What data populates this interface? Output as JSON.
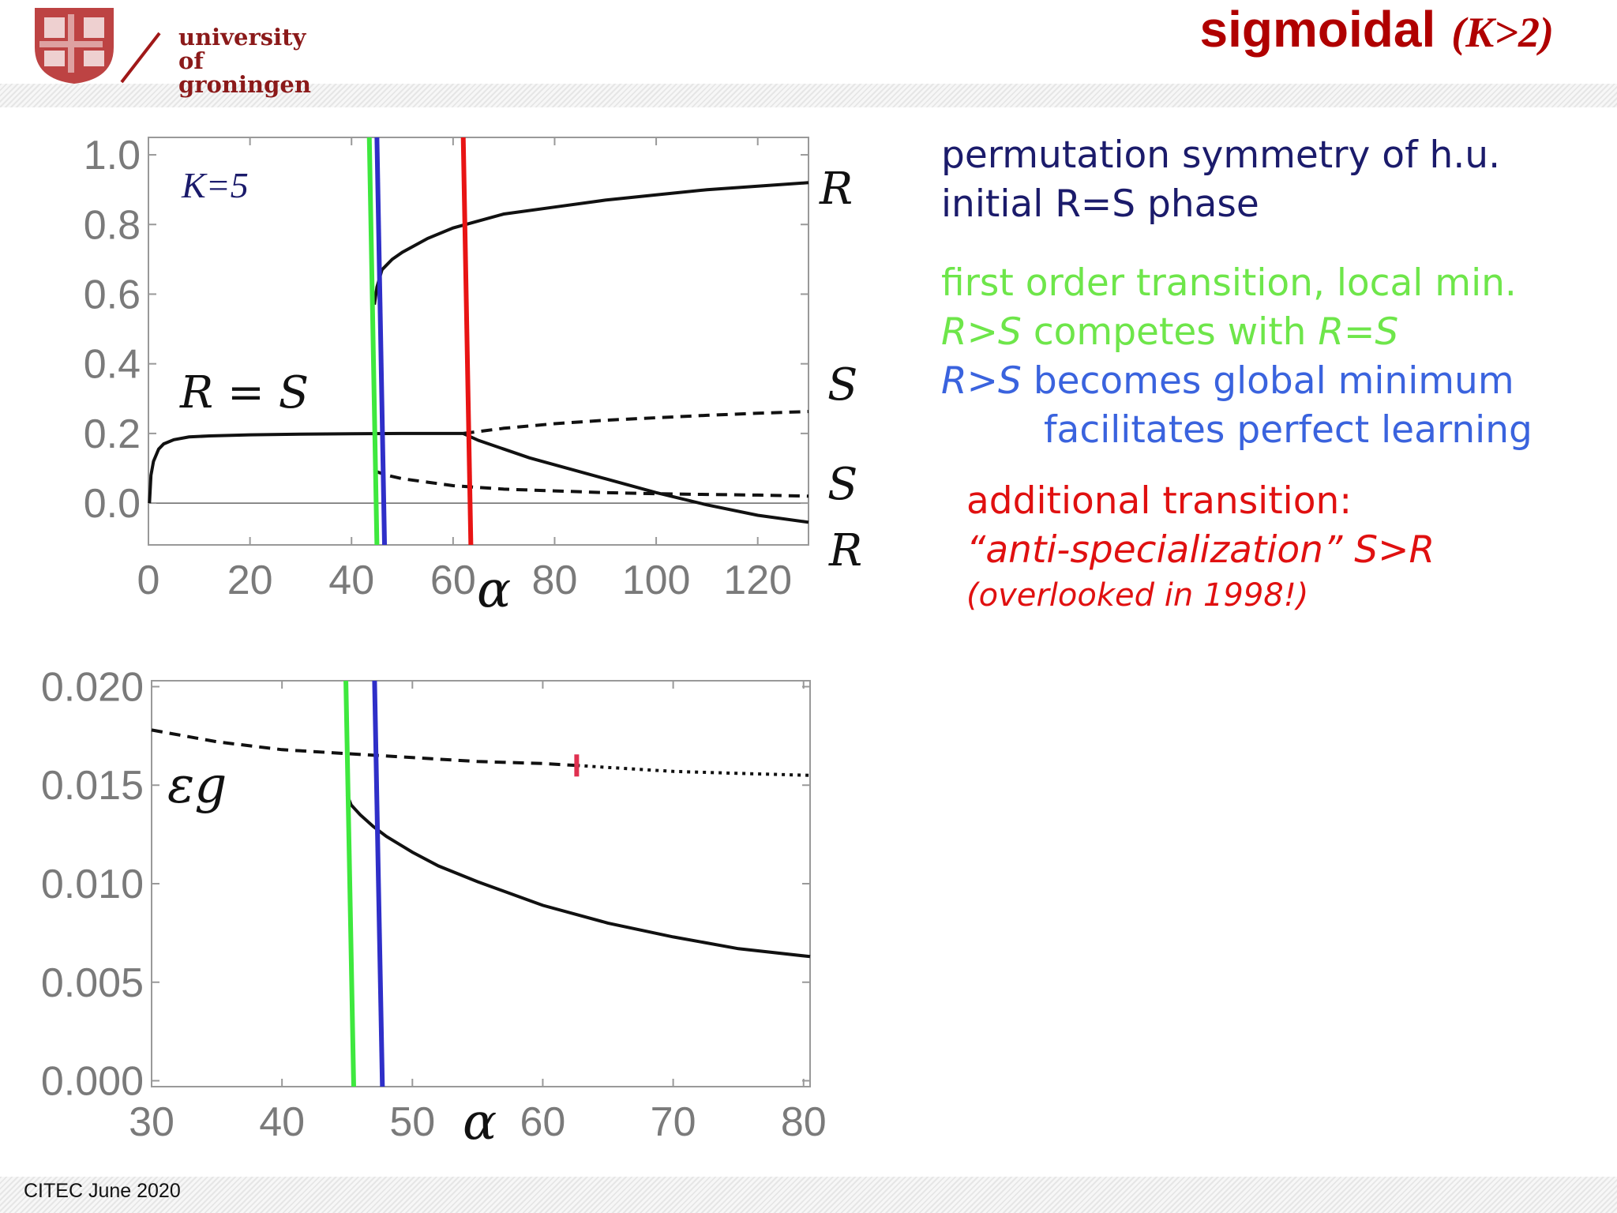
{
  "header": {
    "logo_line1": "university of",
    "logo_line2": "groningen",
    "title_main": "sigmoidal",
    "title_sub": "(K>2)"
  },
  "footer": {
    "label": "CITEC June 2020"
  },
  "colors": {
    "green": "#3ee83e",
    "blue": "#2f2fc8",
    "red": "#e81414",
    "title": "#b00000"
  },
  "text": {
    "line1": "permutation symmetry of h.u.",
    "line2": "initial R=S phase",
    "green_line1": "first order transition, local min.",
    "green_line2_a": "R>S",
    "green_line2_b": " competes with ",
    "green_line2_c": "R=S",
    "blue_line1_a": "R>S",
    "blue_line1_b": " becomes global minimum",
    "blue_line2": "facilitates perfect learning",
    "red_line1": "additional transition:",
    "red_line2_a": "“anti-specialization” ",
    "red_line2_b": "S>R",
    "red_line3": "(overlooked in 1998!)"
  },
  "chart_data": [
    {
      "type": "line",
      "xlabel": "α",
      "xlim": [
        0,
        130
      ],
      "ylim": [
        -0.12,
        1.05
      ],
      "xticks": [
        0,
        20,
        40,
        60,
        80,
        100,
        120
      ],
      "yticks": [
        "1.0",
        "0.8",
        "0.6",
        "0.4",
        "0.2",
        "0.0"
      ],
      "annotation": "K=5",
      "curve_labels": {
        "RS": "R = S",
        "R_top": "R",
        "S_upper": "S",
        "S_lower": "S",
        "R_bottom": "R"
      },
      "vertical_lines": [
        {
          "color": "green",
          "x_top": 43.5,
          "x_bottom": 45
        },
        {
          "color": "blue",
          "x_top": 45,
          "x_bottom": 46.5
        },
        {
          "color": "red",
          "x_top": 62,
          "x_bottom": 63.5
        }
      ],
      "series": [
        {
          "style": "solid",
          "x": [
            0.2,
            0.5,
            1,
            2,
            3,
            5,
            8,
            12,
            20,
            30,
            40,
            50,
            62
          ],
          "y": [
            0.0,
            0.08,
            0.12,
            0.155,
            0.17,
            0.182,
            0.19,
            0.193,
            0.196,
            0.198,
            0.199,
            0.2,
            0.2
          ]
        },
        {
          "style": "solid",
          "x": [
            44.5,
            45,
            46,
            48,
            50,
            55,
            60,
            65,
            70,
            80,
            90,
            100,
            110,
            120,
            130
          ],
          "y": [
            0.57,
            0.62,
            0.67,
            0.7,
            0.72,
            0.76,
            0.79,
            0.81,
            0.83,
            0.85,
            0.87,
            0.885,
            0.9,
            0.91,
            0.92
          ]
        },
        {
          "style": "solid",
          "x": [
            62,
            65,
            70,
            75,
            80,
            90,
            100,
            110,
            120,
            130
          ],
          "y": [
            0.2,
            0.18,
            0.155,
            0.13,
            0.11,
            0.07,
            0.03,
            -0.005,
            -0.035,
            -0.055
          ]
        },
        {
          "style": "dashed",
          "x": [
            62,
            70,
            80,
            90,
            100,
            110,
            120,
            130
          ],
          "y": [
            0.2,
            0.215,
            0.228,
            0.238,
            0.245,
            0.252,
            0.258,
            0.263
          ]
        },
        {
          "style": "dashed",
          "x": [
            44.5,
            45,
            47,
            50,
            55,
            60,
            70,
            80,
            90,
            100,
            110,
            120,
            130
          ],
          "y": [
            0.1,
            0.09,
            0.08,
            0.07,
            0.06,
            0.05,
            0.04,
            0.035,
            0.03,
            0.027,
            0.025,
            0.023,
            0.02
          ]
        }
      ]
    },
    {
      "type": "line",
      "xlabel": "α",
      "ylabel": "εg",
      "xlim": [
        30,
        80.5
      ],
      "ylim": [
        -0.0003,
        0.0203
      ],
      "xticks": [
        30,
        40,
        50,
        60,
        70,
        80
      ],
      "yticks": [
        "0.020",
        "0.015",
        "0.010",
        "0.005",
        "0.000"
      ],
      "vertical_lines": [
        {
          "color": "green",
          "x_top": 44.9,
          "x_bottom": 45.5
        },
        {
          "color": "blue",
          "x_top": 47.1,
          "x_bottom": 47.7
        }
      ],
      "red_marker": {
        "x": 62.6,
        "y": 0.016
      },
      "series": [
        {
          "style": "dashed",
          "x": [
            30,
            35,
            40,
            45,
            50,
            55,
            60,
            62.6
          ],
          "y": [
            0.0178,
            0.0172,
            0.0168,
            0.0166,
            0.0164,
            0.0162,
            0.0161,
            0.016
          ]
        },
        {
          "style": "dotted",
          "x": [
            62.6,
            65,
            70,
            75,
            80.5
          ],
          "y": [
            0.016,
            0.0159,
            0.0157,
            0.0156,
            0.0155
          ]
        },
        {
          "style": "solid",
          "x": [
            45,
            45.3,
            46,
            47,
            48,
            50,
            52,
            55,
            60,
            65,
            70,
            75,
            80.5
          ],
          "y": [
            0.0145,
            0.014,
            0.0135,
            0.0129,
            0.0124,
            0.0116,
            0.0109,
            0.0101,
            0.0089,
            0.008,
            0.0073,
            0.0067,
            0.0063
          ]
        }
      ]
    }
  ]
}
